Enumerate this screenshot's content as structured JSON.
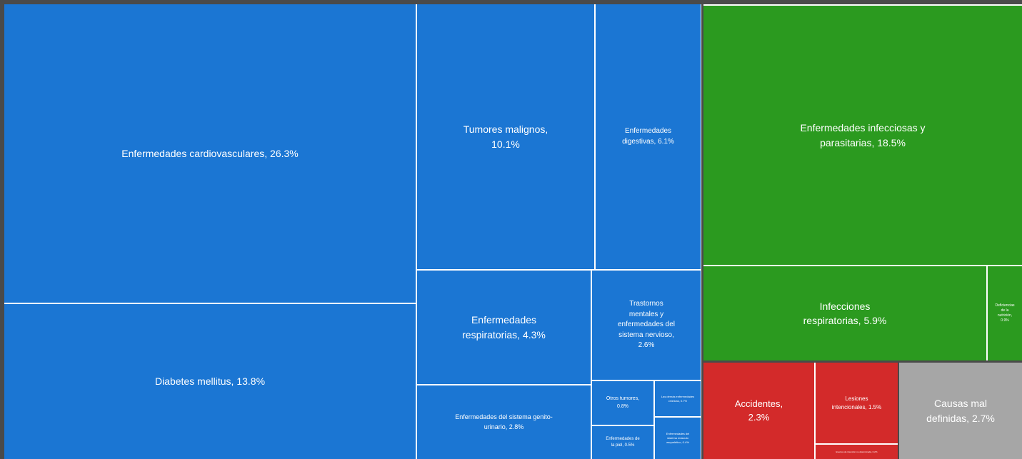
{
  "chart_data": {
    "type": "treemap",
    "categories": [
      "Enfermedades cardiovasculares, 26.3%",
      "Diabetes mellitus, 13.8%",
      "Tumores malignos, 10.1%",
      "Enfermedades digestivas, 6.1%",
      "Enfermedades respiratorias, 4.3%",
      "Trastornos mentales y enfermedades del sistema nervioso, 2.6%",
      "Enfermedades del sistema genito-urinario, 2.8%",
      "Otros tumores, 0.8%",
      "Las demás enfermedades crónicas, 0.7%",
      "Enfermedades de la piel, 0.5%",
      "Enfermedades del sistema músculo esquelético, 0.4%",
      "Enfermedades infecciosas y parasitarias, 18.5%",
      "Infecciones respiratorias, 5.9%",
      "Deficiencias de la nutrición, 0.9%",
      "Accidentes, 2.3%",
      "Lesiones intencionales, 1.5%",
      "Eventos de intención no determinada, 0.2%",
      "Causas mal definidas, 2.7%"
    ],
    "values": [
      26.3,
      13.8,
      10.1,
      6.1,
      4.3,
      2.6,
      2.8,
      0.8,
      0.7,
      0.5,
      0.4,
      18.5,
      5.9,
      0.9,
      2.3,
      1.5,
      0.2,
      2.7
    ],
    "colors": [
      "#1b76d3",
      "#1b76d3",
      "#1b76d3",
      "#1b76d3",
      "#1b76d3",
      "#1b76d3",
      "#1b76d3",
      "#1b76d3",
      "#1b76d3",
      "#1b76d3",
      "#1b76d3",
      "#2b9a1f",
      "#2b9a1f",
      "#2b9a1f",
      "#d32a2a",
      "#d32a2a",
      "#d32a2a",
      "#a6a6a6"
    ]
  }
}
